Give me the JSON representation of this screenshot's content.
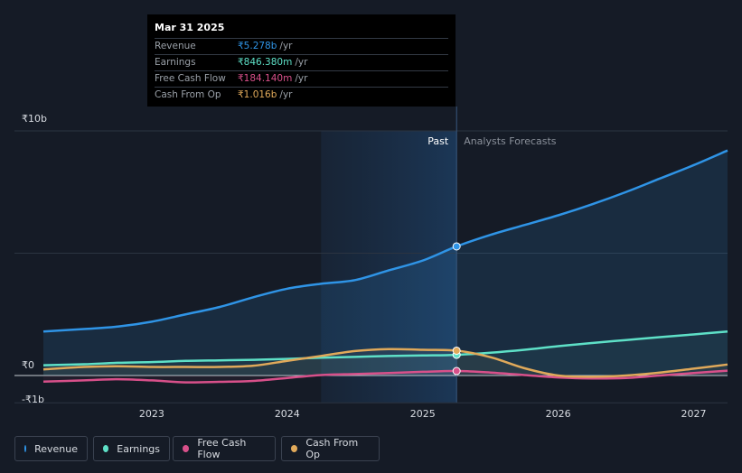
{
  "chart_data": {
    "type": "line",
    "title": "",
    "y_axis": {
      "min": -1.1,
      "max": 10,
      "ticks": [
        {
          "value": 10,
          "label": "₹10b"
        },
        {
          "value": 0,
          "label": "₹0"
        },
        {
          "value": -1,
          "label": "-₹1b"
        }
      ]
    },
    "x_axis": {
      "min": 2022.2,
      "max": 2027.25,
      "ticks": [
        {
          "value": 2023,
          "label": "2023"
        },
        {
          "value": 2024,
          "label": "2024"
        },
        {
          "value": 2025,
          "label": "2025"
        },
        {
          "value": 2026,
          "label": "2026"
        },
        {
          "value": 2027,
          "label": "2027"
        }
      ]
    },
    "past_region_start": 2024.25,
    "divider_x": 2025.25,
    "past_label": "Past",
    "forecast_label": "Analysts Forecasts",
    "series": [
      {
        "name": "Revenue",
        "color": "#2f94e6",
        "area": true,
        "points": [
          [
            2022.2,
            1.8
          ],
          [
            2022.5,
            1.9
          ],
          [
            2022.75,
            2.0
          ],
          [
            2023.0,
            2.2
          ],
          [
            2023.25,
            2.5
          ],
          [
            2023.5,
            2.8
          ],
          [
            2023.75,
            3.2
          ],
          [
            2024.0,
            3.55
          ],
          [
            2024.25,
            3.75
          ],
          [
            2024.5,
            3.9
          ],
          [
            2024.75,
            4.3
          ],
          [
            2025.0,
            4.7
          ],
          [
            2025.25,
            5.278
          ],
          [
            2025.5,
            5.75
          ],
          [
            2025.75,
            6.15
          ],
          [
            2026.0,
            6.55
          ],
          [
            2026.25,
            7.0
          ],
          [
            2026.5,
            7.5
          ],
          [
            2026.75,
            8.05
          ],
          [
            2027.0,
            8.6
          ],
          [
            2027.25,
            9.2
          ]
        ]
      },
      {
        "name": "Earnings",
        "color": "#5ee0c7",
        "area": false,
        "points": [
          [
            2022.2,
            0.42
          ],
          [
            2022.5,
            0.46
          ],
          [
            2022.75,
            0.52
          ],
          [
            2023.0,
            0.55
          ],
          [
            2023.25,
            0.6
          ],
          [
            2023.5,
            0.62
          ],
          [
            2023.75,
            0.64
          ],
          [
            2024.0,
            0.68
          ],
          [
            2024.25,
            0.73
          ],
          [
            2024.5,
            0.76
          ],
          [
            2024.75,
            0.8
          ],
          [
            2025.0,
            0.82
          ],
          [
            2025.25,
            0.846
          ],
          [
            2025.5,
            0.93
          ],
          [
            2025.75,
            1.05
          ],
          [
            2026.0,
            1.2
          ],
          [
            2026.25,
            1.33
          ],
          [
            2026.5,
            1.45
          ],
          [
            2026.75,
            1.57
          ],
          [
            2027.0,
            1.68
          ],
          [
            2027.25,
            1.8
          ]
        ]
      },
      {
        "name": "Free Cash Flow",
        "color": "#d8508a",
        "area": false,
        "points": [
          [
            2022.2,
            -0.25
          ],
          [
            2022.5,
            -0.2
          ],
          [
            2022.75,
            -0.15
          ],
          [
            2023.0,
            -0.2
          ],
          [
            2023.25,
            -0.28
          ],
          [
            2023.5,
            -0.26
          ],
          [
            2023.75,
            -0.22
          ],
          [
            2024.0,
            -0.1
          ],
          [
            2024.25,
            0.02
          ],
          [
            2024.5,
            0.06
          ],
          [
            2024.75,
            0.1
          ],
          [
            2025.0,
            0.15
          ],
          [
            2025.25,
            0.184
          ],
          [
            2025.5,
            0.12
          ],
          [
            2025.75,
            0.02
          ],
          [
            2026.0,
            -0.08
          ],
          [
            2026.25,
            -0.12
          ],
          [
            2026.5,
            -0.1
          ],
          [
            2026.75,
            0.0
          ],
          [
            2027.0,
            0.1
          ],
          [
            2027.25,
            0.2
          ]
        ]
      },
      {
        "name": "Cash From Op",
        "color": "#e0a95a",
        "area": false,
        "points": [
          [
            2022.2,
            0.25
          ],
          [
            2022.5,
            0.35
          ],
          [
            2022.75,
            0.38
          ],
          [
            2023.0,
            0.35
          ],
          [
            2023.25,
            0.35
          ],
          [
            2023.5,
            0.35
          ],
          [
            2023.75,
            0.4
          ],
          [
            2024.0,
            0.6
          ],
          [
            2024.25,
            0.8
          ],
          [
            2024.5,
            1.0
          ],
          [
            2024.75,
            1.08
          ],
          [
            2025.0,
            1.05
          ],
          [
            2025.25,
            1.016
          ],
          [
            2025.5,
            0.75
          ],
          [
            2025.75,
            0.3
          ],
          [
            2026.0,
            0.0
          ],
          [
            2026.25,
            -0.05
          ],
          [
            2026.5,
            0.0
          ],
          [
            2026.75,
            0.12
          ],
          [
            2027.0,
            0.28
          ],
          [
            2027.25,
            0.45
          ]
        ]
      }
    ]
  },
  "tooltip": {
    "date": "Mar 31 2025",
    "rows": [
      {
        "label": "Revenue",
        "value": "₹5.278b",
        "unit": "/yr",
        "color": "#2f94e6"
      },
      {
        "label": "Earnings",
        "value": "₹846.380m",
        "unit": "/yr",
        "color": "#5ee0c7"
      },
      {
        "label": "Free Cash Flow",
        "value": "₹184.140m",
        "unit": "/yr",
        "color": "#d8508a"
      },
      {
        "label": "Cash From Op",
        "value": "₹1.016b",
        "unit": "/yr",
        "color": "#e0a95a"
      }
    ]
  },
  "legend": [
    {
      "label": "Revenue",
      "color": "#2f94e6"
    },
    {
      "label": "Earnings",
      "color": "#5ee0c7"
    },
    {
      "label": "Free Cash Flow",
      "color": "#d8508a"
    },
    {
      "label": "Cash From Op",
      "color": "#e0a95a"
    }
  ]
}
